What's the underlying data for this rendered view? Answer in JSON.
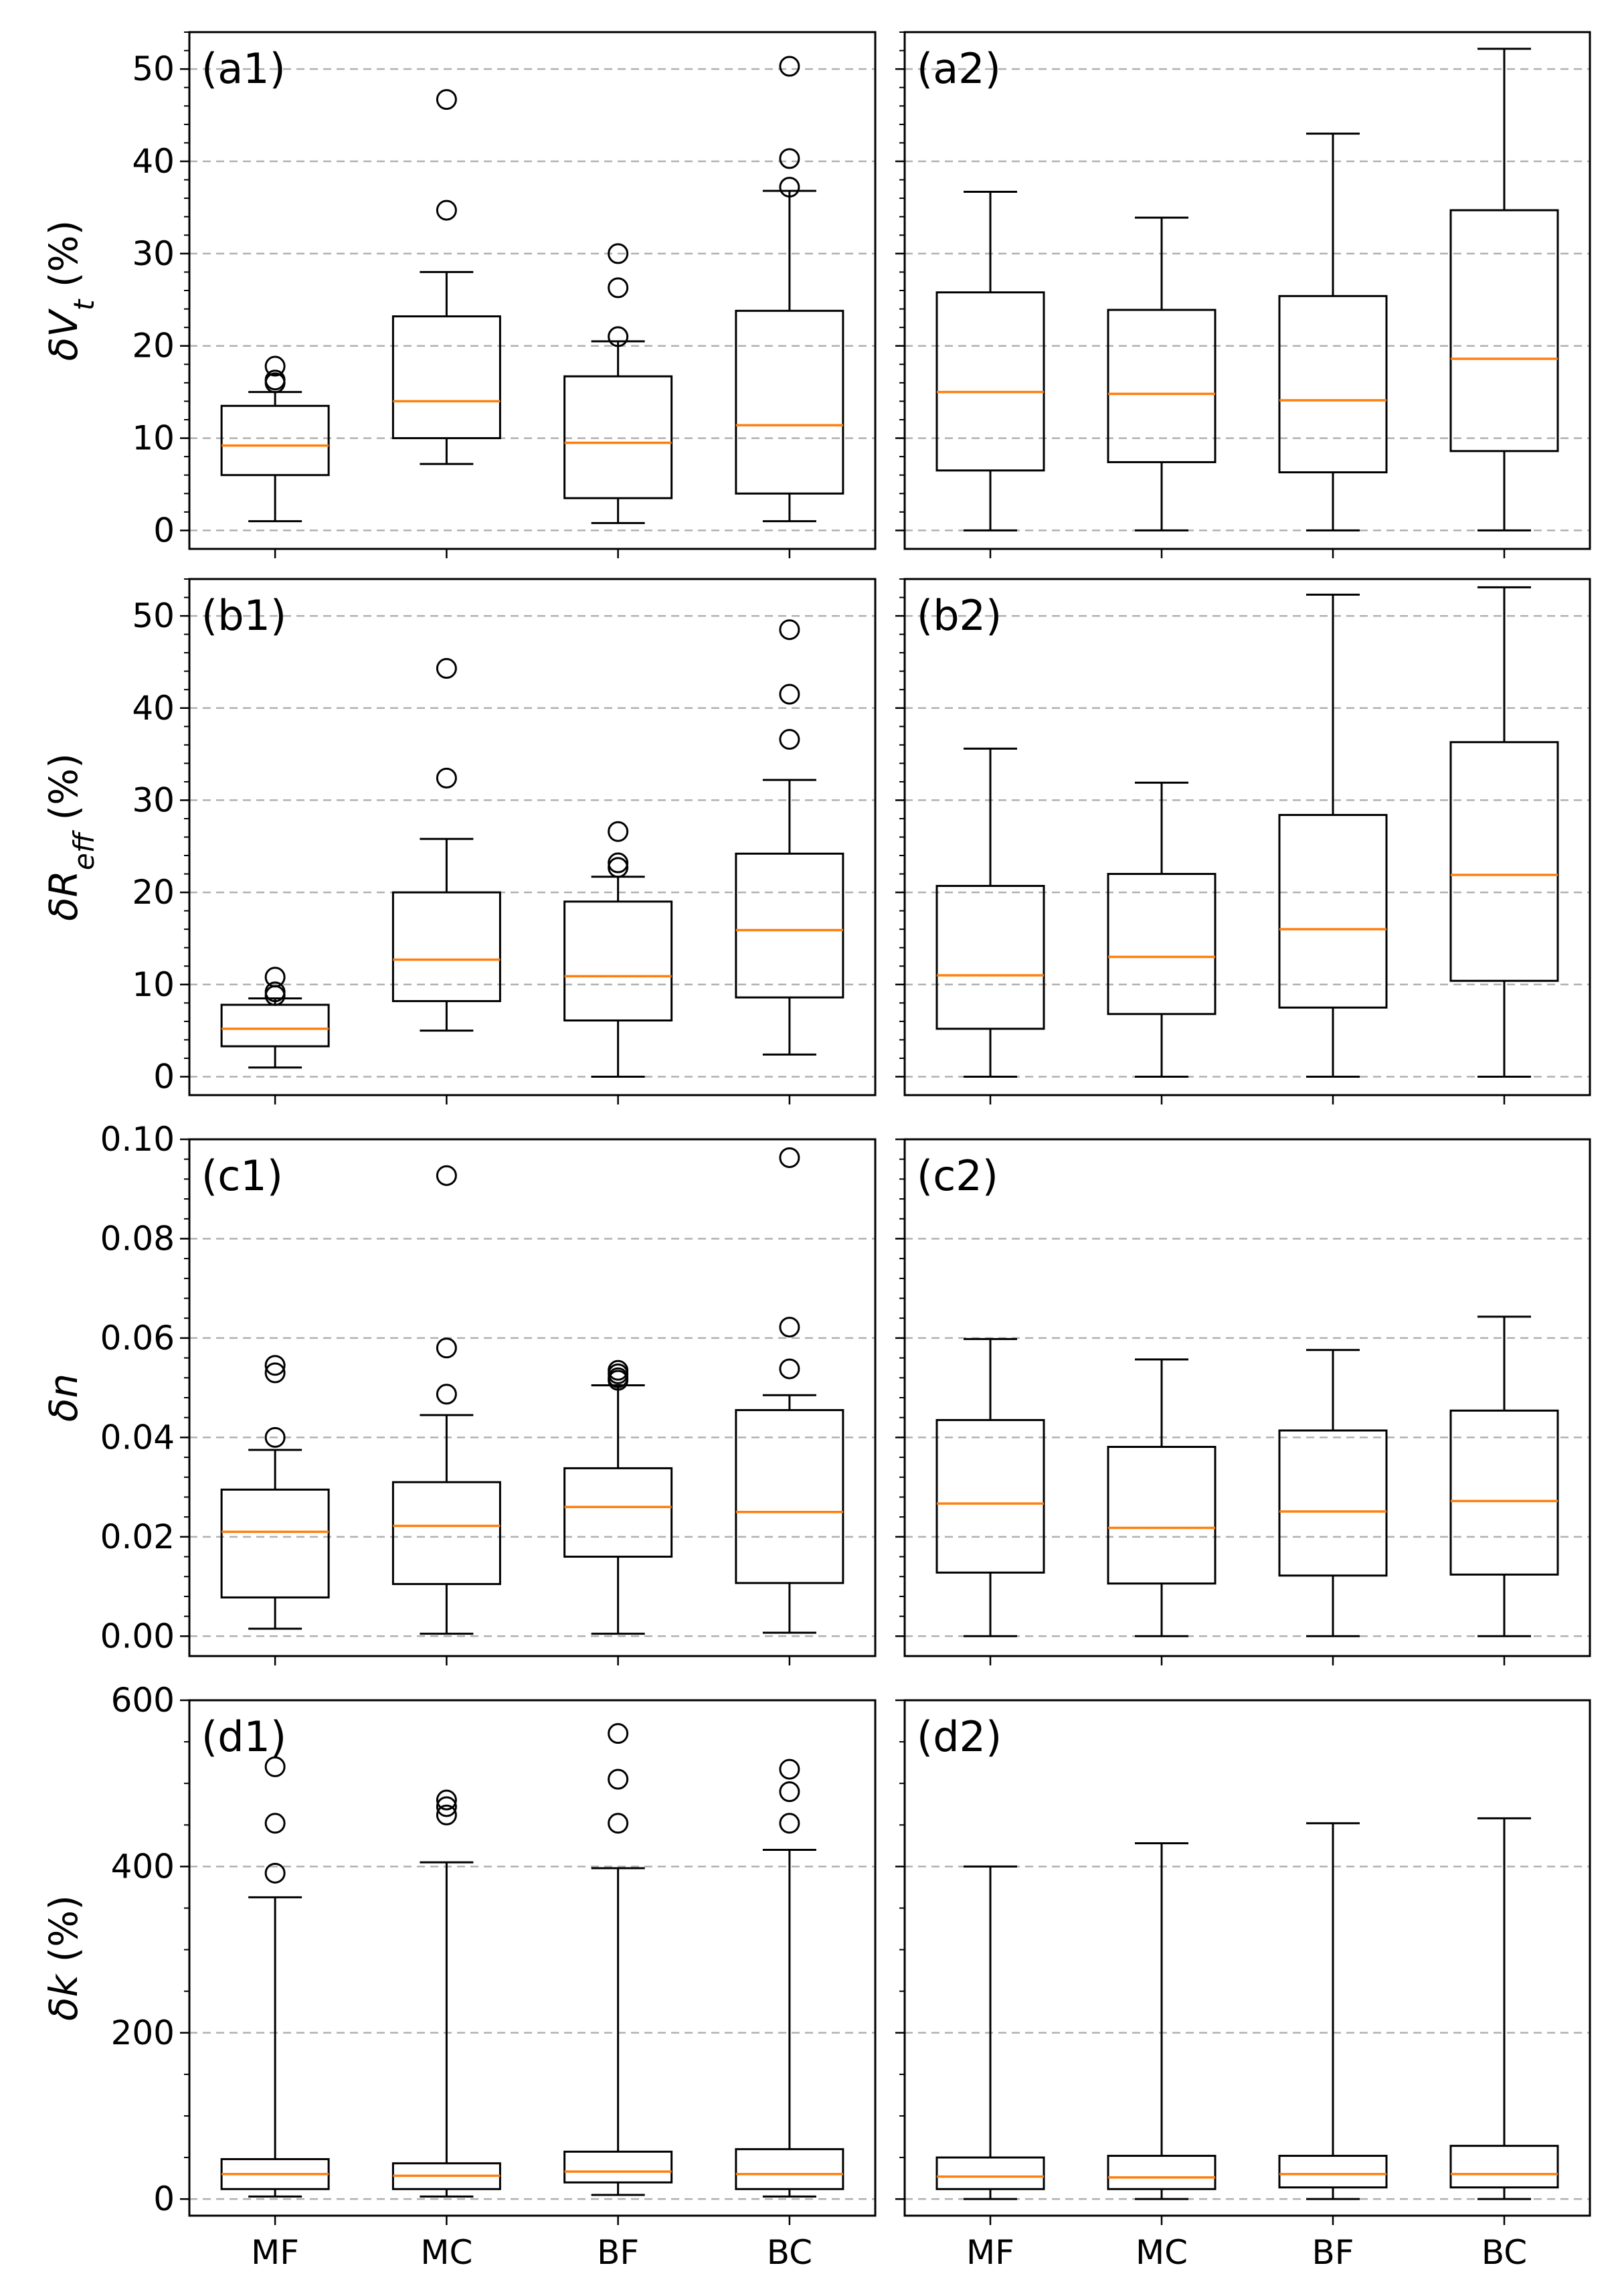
{
  "chart_data": [
    {
      "type": "box",
      "panel": "(a1)",
      "ylabel_base": "δV",
      "ylabel_sub": "t",
      "ylabel_suffix": " (%)",
      "ylim": [
        -2,
        54
      ],
      "yticks": [
        0,
        10,
        20,
        30,
        40,
        50
      ],
      "ytick_labels": [
        "0",
        "10",
        "20",
        "30",
        "40",
        "50"
      ],
      "categories": [
        "MF",
        "MC",
        "BF",
        "BC"
      ],
      "boxes": [
        {
          "whislo": 1.0,
          "q1": 6.0,
          "med": 9.2,
          "q3": 13.5,
          "whishi": 15.0,
          "fliers": [
            16.0,
            16.3,
            17.8
          ]
        },
        {
          "whislo": 7.2,
          "q1": 10.0,
          "med": 14.0,
          "q3": 23.2,
          "whishi": 28.0,
          "fliers": [
            34.7,
            46.7
          ]
        },
        {
          "whislo": 0.8,
          "q1": 3.5,
          "med": 9.5,
          "q3": 16.7,
          "whishi": 20.5,
          "fliers": [
            21.0,
            26.3,
            30.0
          ]
        },
        {
          "whislo": 1.0,
          "q1": 4.0,
          "med": 11.4,
          "q3": 23.8,
          "whishi": 36.8,
          "fliers": [
            37.2,
            40.3,
            50.3
          ]
        }
      ]
    },
    {
      "type": "box",
      "panel": "(a2)",
      "ylim": [
        -2,
        54
      ],
      "yticks": [
        0,
        10,
        20,
        30,
        40,
        50
      ],
      "categories": [
        "MF",
        "MC",
        "BF",
        "BC"
      ],
      "boxes": [
        {
          "whislo": 0.0,
          "q1": 6.5,
          "med": 15.0,
          "q3": 25.8,
          "whishi": 36.7,
          "fliers": []
        },
        {
          "whislo": 0.0,
          "q1": 7.4,
          "med": 14.8,
          "q3": 23.9,
          "whishi": 33.9,
          "fliers": []
        },
        {
          "whislo": 0.0,
          "q1": 6.3,
          "med": 14.1,
          "q3": 25.4,
          "whishi": 43.0,
          "fliers": []
        },
        {
          "whislo": 0.0,
          "q1": 8.6,
          "med": 18.6,
          "q3": 34.7,
          "whishi": 52.2,
          "fliers": []
        }
      ]
    },
    {
      "type": "box",
      "panel": "(b1)",
      "ylabel_base": "δR",
      "ylabel_sub": "eff",
      "ylabel_suffix": " (%)",
      "ylim": [
        -2,
        54
      ],
      "yticks": [
        0,
        10,
        20,
        30,
        40,
        50
      ],
      "ytick_labels": [
        "0",
        "10",
        "20",
        "30",
        "40",
        "50"
      ],
      "categories": [
        "MF",
        "MC",
        "BF",
        "BC"
      ],
      "boxes": [
        {
          "whislo": 1.0,
          "q1": 3.3,
          "med": 5.2,
          "q3": 7.8,
          "whishi": 8.5,
          "fliers": [
            8.8,
            9.2,
            10.8
          ]
        },
        {
          "whislo": 5.0,
          "q1": 8.2,
          "med": 12.7,
          "q3": 20.0,
          "whishi": 25.8,
          "fliers": [
            32.4,
            44.3
          ]
        },
        {
          "whislo": 0.0,
          "q1": 6.1,
          "med": 10.9,
          "q3": 19.0,
          "whishi": 21.7,
          "fliers": [
            22.7,
            23.2,
            26.6
          ]
        },
        {
          "whislo": 2.4,
          "q1": 8.6,
          "med": 15.9,
          "q3": 24.2,
          "whishi": 32.2,
          "fliers": [
            36.6,
            41.5,
            48.5
          ]
        }
      ]
    },
    {
      "type": "box",
      "panel": "(b2)",
      "ylim": [
        -2,
        54
      ],
      "yticks": [
        0,
        10,
        20,
        30,
        40,
        50
      ],
      "categories": [
        "MF",
        "MC",
        "BF",
        "BC"
      ],
      "boxes": [
        {
          "whislo": 0.0,
          "q1": 5.2,
          "med": 11.0,
          "q3": 20.7,
          "whishi": 35.6,
          "fliers": []
        },
        {
          "whislo": 0.0,
          "q1": 6.8,
          "med": 13.0,
          "q3": 22.0,
          "whishi": 31.9,
          "fliers": []
        },
        {
          "whislo": 0.0,
          "q1": 7.5,
          "med": 16.0,
          "q3": 28.4,
          "whishi": 52.3,
          "fliers": []
        },
        {
          "whislo": 0.0,
          "q1": 10.4,
          "med": 21.9,
          "q3": 36.3,
          "whishi": 53.1,
          "fliers": []
        }
      ]
    },
    {
      "type": "box",
      "panel": "(c1)",
      "ylabel_base": "δn",
      "ylabel_sub": "",
      "ylabel_suffix": "",
      "ylim": [
        -0.004,
        0.1
      ],
      "yticks": [
        0.0,
        0.02,
        0.04,
        0.06,
        0.08,
        0.1
      ],
      "ytick_labels": [
        "0.00",
        "0.02",
        "0.04",
        "0.06",
        "0.08",
        "0.10"
      ],
      "categories": [
        "MF",
        "MC",
        "BF",
        "BC"
      ],
      "boxes": [
        {
          "whislo": 0.0015,
          "q1": 0.0078,
          "med": 0.021,
          "q3": 0.0295,
          "whishi": 0.0375,
          "fliers": [
            0.04,
            0.053,
            0.0545
          ]
        },
        {
          "whislo": 0.0005,
          "q1": 0.0105,
          "med": 0.0222,
          "q3": 0.031,
          "whishi": 0.0445,
          "fliers": [
            0.0487,
            0.058,
            0.0927
          ]
        },
        {
          "whislo": 0.0005,
          "q1": 0.016,
          "med": 0.026,
          "q3": 0.0338,
          "whishi": 0.0505,
          "fliers": [
            0.0515,
            0.052,
            0.0528,
            0.0535
          ]
        },
        {
          "whislo": 0.0007,
          "q1": 0.0107,
          "med": 0.025,
          "q3": 0.0455,
          "whishi": 0.0485,
          "fliers": [
            0.0538,
            0.0622,
            0.0963
          ]
        }
      ]
    },
    {
      "type": "box",
      "panel": "(c2)",
      "ylim": [
        -0.004,
        0.1
      ],
      "yticks": [
        0.0,
        0.02,
        0.04,
        0.06,
        0.08,
        0.1
      ],
      "categories": [
        "MF",
        "MC",
        "BF",
        "BC"
      ],
      "boxes": [
        {
          "whislo": 0.0,
          "q1": 0.0128,
          "med": 0.0267,
          "q3": 0.0435,
          "whishi": 0.0598,
          "fliers": []
        },
        {
          "whislo": 0.0,
          "q1": 0.0106,
          "med": 0.0218,
          "q3": 0.0381,
          "whishi": 0.0557,
          "fliers": []
        },
        {
          "whislo": 0.0,
          "q1": 0.0122,
          "med": 0.0251,
          "q3": 0.0414,
          "whishi": 0.0576,
          "fliers": []
        },
        {
          "whislo": 0.0,
          "q1": 0.0124,
          "med": 0.0272,
          "q3": 0.0454,
          "whishi": 0.0643,
          "fliers": []
        }
      ]
    },
    {
      "type": "box",
      "panel": "(d1)",
      "ylabel_base": "δk",
      "ylabel_sub": "",
      "ylabel_suffix": " (%)",
      "ylim": [
        -20,
        600
      ],
      "yticks": [
        0,
        200,
        400,
        600
      ],
      "ytick_labels": [
        "0",
        "200",
        "400",
        "600"
      ],
      "categories": [
        "MF",
        "MC",
        "BF",
        "BC"
      ],
      "boxes": [
        {
          "whislo": 3,
          "q1": 12,
          "med": 30,
          "q3": 48,
          "whishi": 363,
          "fliers": [
            392,
            452,
            520
          ]
        },
        {
          "whislo": 3,
          "q1": 12,
          "med": 28,
          "q3": 43,
          "whishi": 405,
          "fliers": [
            462,
            472,
            480
          ]
        },
        {
          "whislo": 5,
          "q1": 20,
          "med": 33,
          "q3": 57,
          "whishi": 398,
          "fliers": [
            452,
            505,
            560
          ]
        },
        {
          "whislo": 3,
          "q1": 12,
          "med": 30,
          "q3": 60,
          "whishi": 420,
          "fliers": [
            452,
            490,
            517
          ]
        }
      ]
    },
    {
      "type": "box",
      "panel": "(d2)",
      "ylim": [
        -20,
        600
      ],
      "yticks": [
        0,
        200,
        400,
        600
      ],
      "categories": [
        "MF",
        "MC",
        "BF",
        "BC"
      ],
      "boxes": [
        {
          "whislo": 0,
          "q1": 12,
          "med": 27,
          "q3": 50,
          "whishi": 400,
          "fliers": []
        },
        {
          "whislo": 0,
          "q1": 12,
          "med": 26,
          "q3": 52,
          "whishi": 428,
          "fliers": []
        },
        {
          "whislo": 0,
          "q1": 14,
          "med": 30,
          "q3": 52,
          "whishi": 452,
          "fliers": []
        },
        {
          "whislo": 0,
          "q1": 14,
          "med": 30,
          "q3": 64,
          "whishi": 458,
          "fliers": []
        }
      ]
    }
  ],
  "colors": {
    "median": "#ff7f0e",
    "box": "#000000",
    "grid": "#b0b0b0"
  }
}
